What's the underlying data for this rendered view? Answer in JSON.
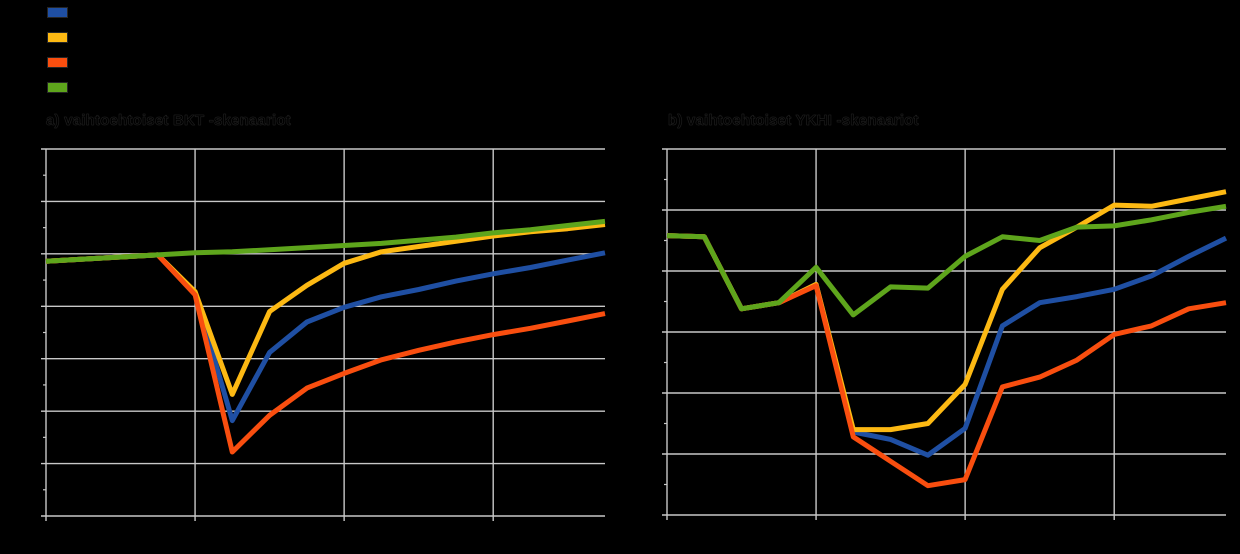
{
  "style": {
    "background": "#000000",
    "grid_color": "#c8c8c8",
    "text_color": "#000000"
  },
  "legend": {
    "position": "top-left",
    "items": [
      {
        "label": "",
        "color": "#1f4fa3"
      },
      {
        "label": "",
        "color": "#fdb913"
      },
      {
        "label": "",
        "color": "#f94e0f"
      },
      {
        "label": "",
        "color": "#5ea51c"
      }
    ]
  },
  "panels": [
    {
      "id": "a",
      "title": "a) vaihtoehtoiset BKT -skenaariot"
    },
    {
      "id": "b",
      "title": "b) vaihtoehtoiset YKHI -skenaariot"
    }
  ],
  "chart_data": [
    {
      "panel": "a",
      "type": "line",
      "title": "a) vaihtoehtoiset BKT -skenaariot",
      "xlabel": "",
      "ylabel": "",
      "x": [
        1,
        2,
        3,
        4,
        5,
        6,
        7,
        8,
        9,
        10,
        11,
        12,
        13,
        14,
        15,
        16
      ],
      "xgrid_at": [
        4,
        8,
        12
      ],
      "ylim": [
        75,
        110
      ],
      "ygrid_step": 5,
      "grid": true,
      "tick_labels_shown": false,
      "series": [
        {
          "name": "blue",
          "color": "#1f4fa3",
          "values": [
            99.3,
            99.5,
            99.7,
            99.9,
            96.3,
            84.1,
            90.6,
            93.5,
            94.9,
            95.9,
            96.6,
            97.4,
            98.1,
            98.7,
            99.4,
            100.1
          ]
        },
        {
          "name": "yellow",
          "color": "#fdb913",
          "values": [
            99.3,
            99.5,
            99.7,
            99.9,
            96.4,
            86.6,
            94.5,
            97.0,
            99.1,
            100.2,
            100.7,
            101.2,
            101.7,
            102.1,
            102.4,
            102.8
          ]
        },
        {
          "name": "orange",
          "color": "#f94e0f",
          "values": [
            99.3,
            99.5,
            99.7,
            99.9,
            96.1,
            81.1,
            84.6,
            87.2,
            88.6,
            89.9,
            90.8,
            91.6,
            92.3,
            92.9,
            93.6,
            94.3
          ]
        },
        {
          "name": "green",
          "color": "#5ea51c",
          "values": [
            99.3,
            99.5,
            99.7,
            99.9,
            100.1,
            100.2,
            100.4,
            100.6,
            100.8,
            101.0,
            101.3,
            101.6,
            102.0,
            102.3,
            102.7,
            103.1
          ]
        }
      ]
    },
    {
      "panel": "b",
      "type": "line",
      "title": "b) vaihtoehtoiset YKHI -skenaariot",
      "xlabel": "",
      "ylabel": "",
      "x": [
        1,
        2,
        3,
        4,
        5,
        6,
        7,
        8,
        9,
        10,
        11,
        12,
        13,
        14,
        15,
        16
      ],
      "xgrid_at": [
        4,
        8,
        12
      ],
      "ylim": [
        80,
        110
      ],
      "ygrid_step": 5,
      "grid": true,
      "tick_labels_shown": false,
      "series": [
        {
          "name": "blue",
          "color": "#1f4fa3",
          "values": [
            102.9,
            102.8,
            96.9,
            97.4,
            98.9,
            86.8,
            86.2,
            84.9,
            87.1,
            95.5,
            97.4,
            97.9,
            98.5,
            99.6,
            101.2,
            102.7
          ]
        },
        {
          "name": "yellow",
          "color": "#fdb913",
          "values": [
            102.9,
            102.8,
            96.9,
            97.4,
            98.9,
            87.0,
            87.0,
            87.5,
            90.7,
            98.5,
            101.9,
            103.6,
            105.4,
            105.3,
            105.9,
            106.5
          ]
        },
        {
          "name": "orange",
          "color": "#f94e0f",
          "values": [
            102.9,
            102.8,
            96.9,
            97.4,
            98.8,
            86.4,
            84.4,
            82.4,
            82.9,
            90.5,
            91.3,
            92.7,
            94.8,
            95.5,
            96.9,
            97.4
          ]
        },
        {
          "name": "green",
          "color": "#5ea51c",
          "values": [
            102.9,
            102.8,
            96.9,
            97.4,
            100.3,
            96.4,
            98.7,
            98.6,
            101.2,
            102.8,
            102.5,
            103.6,
            103.7,
            104.2,
            104.8,
            105.3
          ]
        }
      ]
    }
  ]
}
